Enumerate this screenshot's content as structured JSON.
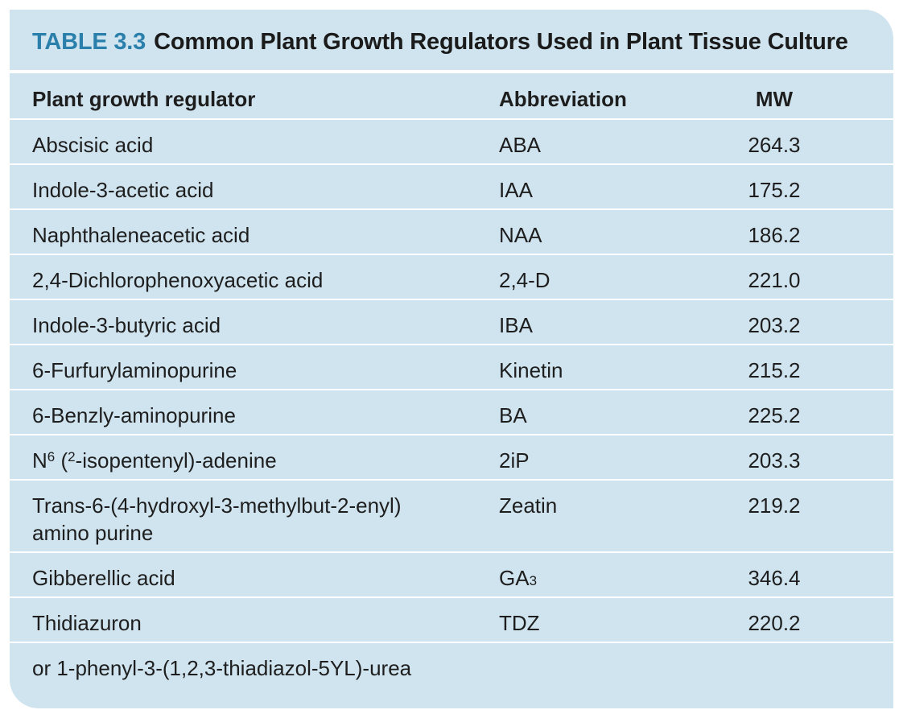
{
  "table": {
    "label": "TABLE 3.3",
    "title": "Common Plant Growth Regulators Used in Plant Tissue Culture",
    "headers": {
      "regulator": "Plant growth regulator",
      "abbreviation": "Abbreviation",
      "mw": "MW"
    },
    "rows": [
      {
        "name": "Abscisic acid",
        "abbr": "ABA",
        "mw": "264.3"
      },
      {
        "name": "Indole-3-acetic acid",
        "abbr": "IAA",
        "mw": "175.2"
      },
      {
        "name": "Naphthaleneacetic acid",
        "abbr": "NAA",
        "mw": "186.2"
      },
      {
        "name": "2,4-Dichlorophenoxyacetic acid",
        "abbr": "2,4-D",
        "mw": "221.0"
      },
      {
        "name": "Indole-3-butyric acid",
        "abbr": "IBA",
        "mw": "203.2"
      },
      {
        "name": "6-Furfurylaminopurine",
        "abbr": "Kinetin",
        "mw": "215.2"
      },
      {
        "name": "6-Benzly-aminopurine",
        "abbr": "BA",
        "mw": "225.2"
      },
      {
        "name_prefix": "N",
        "name_sup1": "6",
        "name_mid": " (",
        "name_sup2": "2",
        "name_suffix": "-isopentenyl)-adenine",
        "abbr": "2iP",
        "mw": "203.3"
      },
      {
        "name_line1": "Trans-6-(4-hydroxyl-3-methylbut-2-enyl)",
        "name_line2": "amino purine",
        "abbr": "Zeatin",
        "mw": "219.2"
      },
      {
        "name": "Gibberellic acid",
        "abbr_base": "GA",
        "abbr_sub": "3",
        "mw": "346.4"
      },
      {
        "name": "Thidiazuron",
        "abbr": "TDZ",
        "mw": "220.2"
      },
      {
        "name": "or 1-phenyl-3-(1,2,3-thiadiazol-5YL)-urea"
      }
    ]
  },
  "colors": {
    "background": "#cfe4ef",
    "label": "#2a7fab",
    "divider": "#ffffff"
  }
}
